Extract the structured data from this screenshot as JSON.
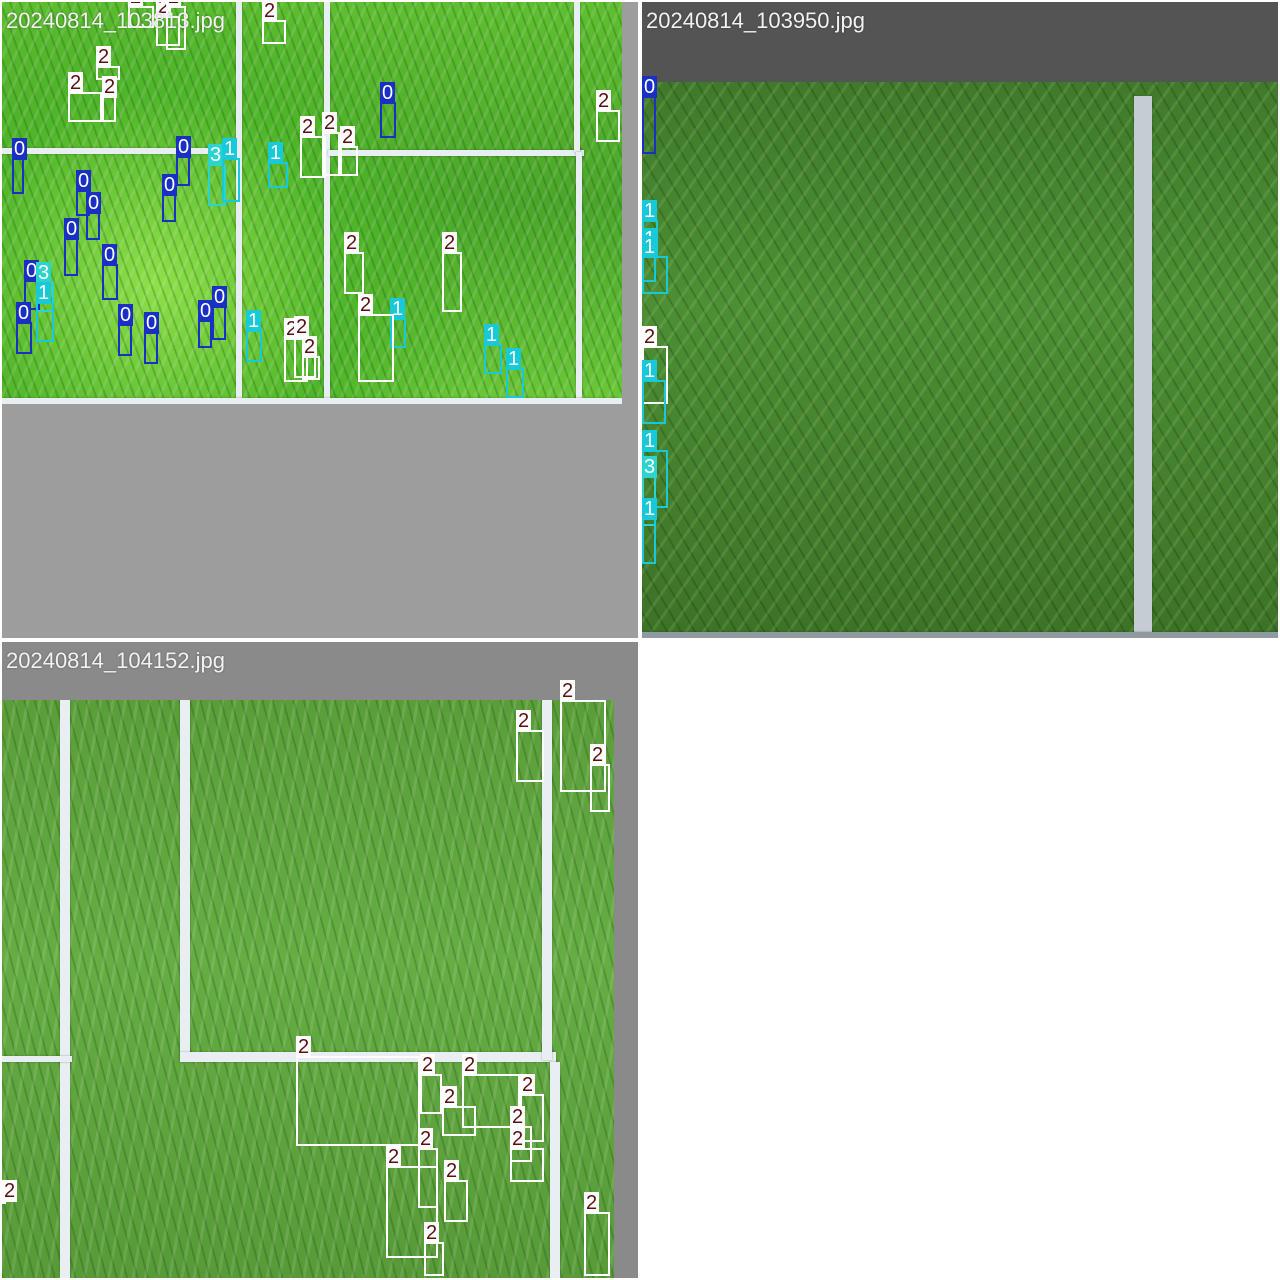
{
  "tiles": [
    {
      "title": "20240814_103813.jpg",
      "bg": "#9d9d9d"
    },
    {
      "title": "20240814_103950.jpg",
      "bg": "#545454"
    },
    {
      "title": "20240814_104152.jpg",
      "bg": "#8a8a8a"
    }
  ],
  "detections": {
    "tile1": [
      {
        "cls": "2",
        "label": "2"
      },
      {
        "cls": "2",
        "label": "2"
      },
      {
        "cls": "2",
        "label": "2"
      },
      {
        "cls": "2",
        "label": "2"
      },
      {
        "cls": "2",
        "label": "2"
      },
      {
        "cls": "2",
        "label": "2"
      },
      {
        "cls": "2",
        "label": "2"
      },
      {
        "cls": "0",
        "label": "0"
      },
      {
        "cls": "2",
        "label": "2"
      },
      {
        "cls": "0",
        "label": "0"
      },
      {
        "cls": "0",
        "label": "0"
      },
      {
        "cls": "0",
        "label": "0"
      },
      {
        "cls": "0",
        "label": "0"
      },
      {
        "cls": "0",
        "label": "0"
      },
      {
        "cls": "3",
        "label": "3"
      },
      {
        "cls": "1",
        "label": "1"
      },
      {
        "cls": "1",
        "label": "1"
      },
      {
        "cls": "2",
        "label": "2"
      },
      {
        "cls": "2",
        "label": "2"
      },
      {
        "cls": "2",
        "label": "2"
      },
      {
        "cls": "0",
        "label": "0"
      },
      {
        "cls": "0",
        "label": "0"
      },
      {
        "cls": "0",
        "label": "0"
      },
      {
        "cls": "3",
        "label": "3"
      },
      {
        "cls": "1",
        "label": "1"
      },
      {
        "cls": "0",
        "label": "0"
      },
      {
        "cls": "0",
        "label": "0"
      },
      {
        "cls": "0",
        "label": "0"
      },
      {
        "cls": "0",
        "label": "0"
      },
      {
        "cls": "0",
        "label": "0"
      },
      {
        "cls": "1",
        "label": "1"
      },
      {
        "cls": "2",
        "label": "2"
      },
      {
        "cls": "2",
        "label": "2"
      },
      {
        "cls": "2",
        "label": "2"
      },
      {
        "cls": "1",
        "label": "1"
      },
      {
        "cls": "2",
        "label": "2"
      },
      {
        "cls": "2",
        "label": "2"
      },
      {
        "cls": "2",
        "label": "2"
      },
      {
        "cls": "1",
        "label": "1"
      },
      {
        "cls": "1",
        "label": "1"
      }
    ],
    "tile2": [
      {
        "cls": "1",
        "label": "1"
      },
      {
        "cls": "1",
        "label": "1"
      },
      {
        "cls": "1",
        "label": "1"
      },
      {
        "cls": "2",
        "label": "2"
      },
      {
        "cls": "0",
        "label": "0"
      },
      {
        "cls": "1",
        "label": "1"
      },
      {
        "cls": "1",
        "label": "1"
      },
      {
        "cls": "3",
        "label": "3"
      },
      {
        "cls": "1",
        "label": "1"
      }
    ],
    "tile3": [
      {
        "cls": "2",
        "label": "2"
      },
      {
        "cls": "2",
        "label": "2"
      },
      {
        "cls": "2",
        "label": "2"
      },
      {
        "cls": "2",
        "label": "2"
      },
      {
        "cls": "2",
        "label": "2"
      },
      {
        "cls": "2",
        "label": "2"
      },
      {
        "cls": "2",
        "label": "2"
      },
      {
        "cls": "2",
        "label": "2"
      },
      {
        "cls": "2",
        "label": "2"
      },
      {
        "cls": "2",
        "label": "2"
      },
      {
        "cls": "2",
        "label": "2"
      },
      {
        "cls": "2",
        "label": "2"
      },
      {
        "cls": "2",
        "label": "2"
      },
      {
        "cls": "2",
        "label": "2"
      },
      {
        "cls": "2",
        "label": "2"
      },
      {
        "cls": "2",
        "label": "2"
      }
    ]
  },
  "colors": {
    "class0": "#1a2fc4",
    "class1": "#18c9d9",
    "class2": "#ffffff",
    "class3": "#2cd4cf"
  }
}
